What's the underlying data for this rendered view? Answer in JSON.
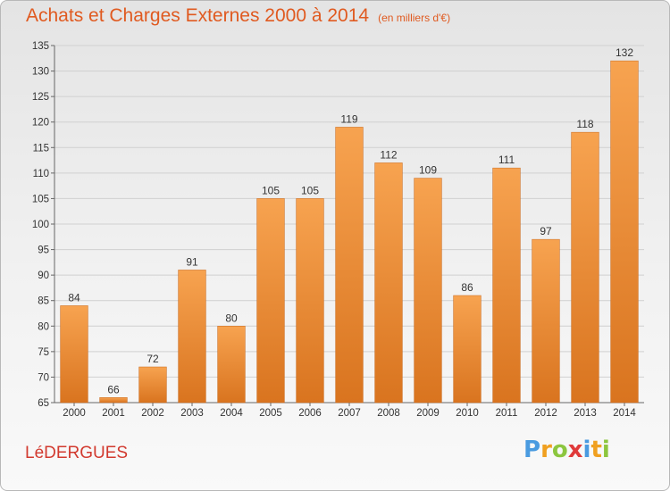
{
  "chart_data": {
    "type": "bar",
    "title": "Achats et Charges Externes 2000 à 2014",
    "subtitle": "(en milliers d'€)",
    "categories": [
      "2000",
      "2001",
      "2002",
      "2003",
      "2004",
      "2005",
      "2006",
      "2007",
      "2008",
      "2009",
      "2010",
      "2011",
      "2012",
      "2013",
      "2014"
    ],
    "values": [
      84,
      66,
      72,
      91,
      80,
      105,
      105,
      119,
      112,
      109,
      86,
      111,
      97,
      118,
      132
    ],
    "xlabel": "",
    "ylabel": "",
    "ylim": [
      65,
      135
    ],
    "yticks": [
      65,
      70,
      75,
      80,
      85,
      90,
      95,
      100,
      105,
      110,
      115,
      120,
      125,
      130,
      135
    ],
    "grid": true,
    "legend": "none",
    "colors": {
      "bar_top": "#f7a350",
      "bar_bottom": "#d9741f",
      "title": "#e05a20"
    }
  },
  "footer": {
    "place_name": "LéDERGUES",
    "logo_letters": [
      "P",
      "r",
      "o",
      "x",
      "i",
      "t",
      "i"
    ],
    "logo_colors": [
      "#4a9be0",
      "#f0a020",
      "#8cc63f",
      "#e03a3a",
      "#4a9be0",
      "#f0a020",
      "#8cc63f"
    ]
  }
}
